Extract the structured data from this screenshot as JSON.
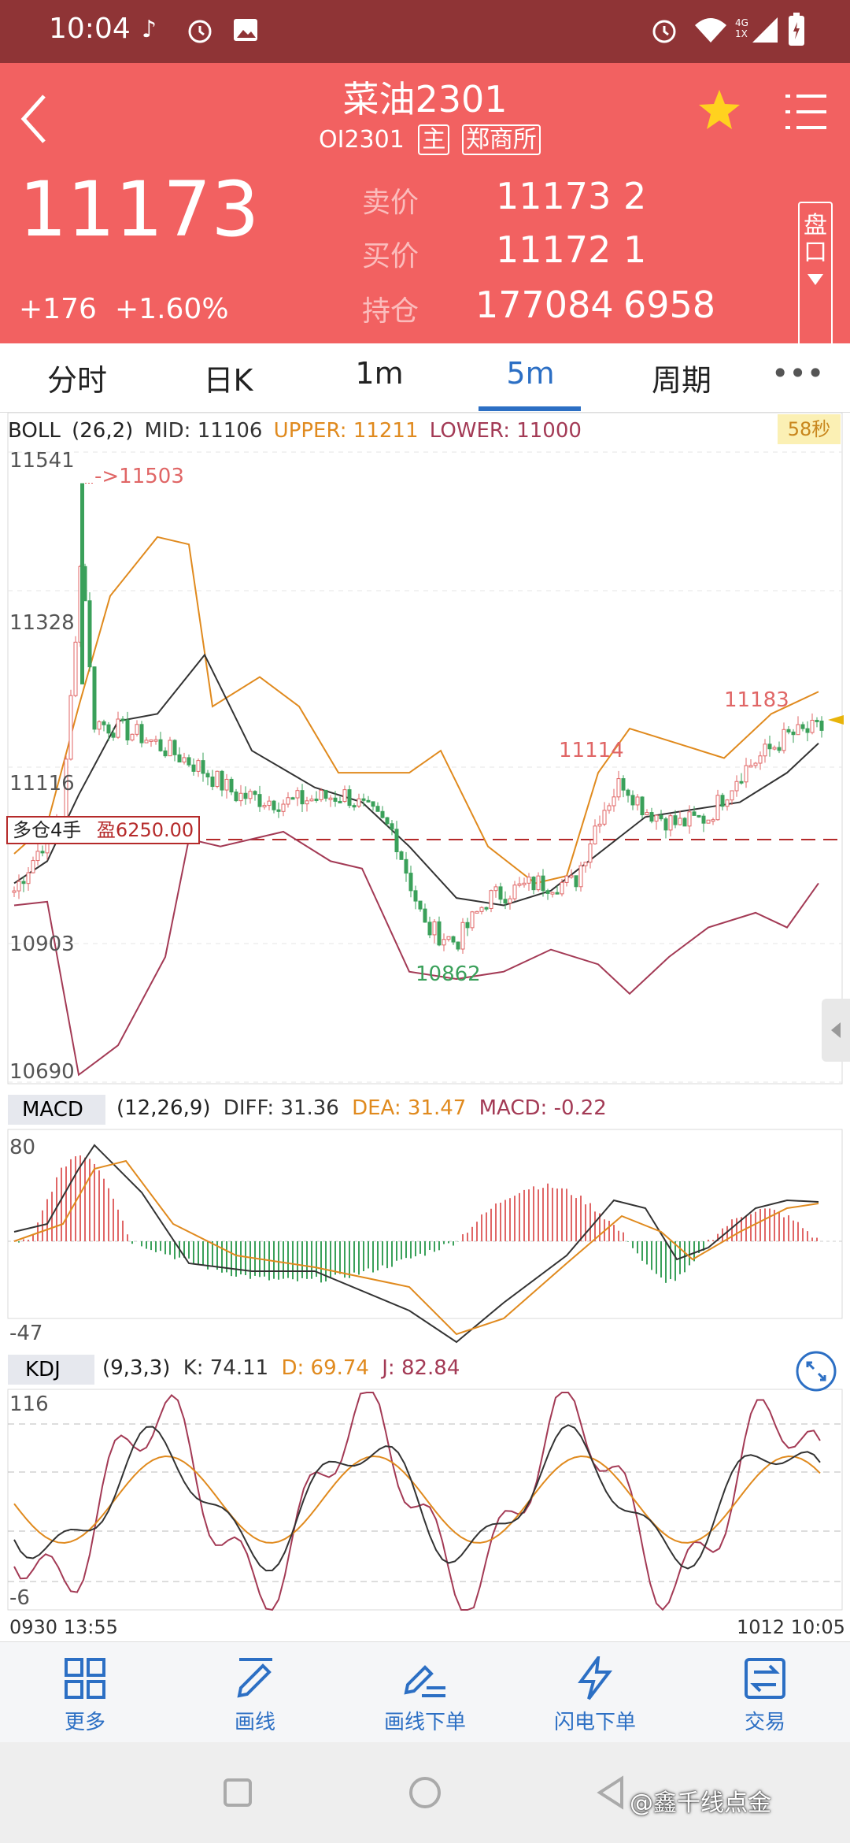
{
  "status": {
    "time": "10:04",
    "net": "4G",
    "net_sub": "1X"
  },
  "header": {
    "title": "菜油2301",
    "code": "OI2301",
    "tag_main": "主",
    "exchange": "郑商所",
    "price": "11173",
    "change": "+176",
    "change_pct": "+1.60%",
    "ask_label": "卖价",
    "ask_price": "11173",
    "ask_vol": "2",
    "bid_label": "买价",
    "bid_price": "11172",
    "bid_vol": "1",
    "oi_label": "持仓",
    "oi_value": "177084",
    "oi_change": "6958",
    "pankou": "盘口"
  },
  "tabs": [
    "分时",
    "日K",
    "1m",
    "5m",
    "周期"
  ],
  "active_tab": "5m",
  "boll": {
    "label": "BOLL",
    "params": "(26,2)",
    "mid": "MID: 11106",
    "upper": "UPPER: 11211",
    "lower": "LOWER: 11000",
    "timer": "58秒",
    "y_labels": [
      "11541",
      "11328",
      "11116",
      "10903",
      "10690"
    ],
    "max_label": "->11503",
    "anno_11114": "11114",
    "anno_11183": "11183",
    "anno_10862": "10862",
    "position_label": "多仓4手",
    "position_pnl": "盈6250.00"
  },
  "macd": {
    "label": "MACD",
    "params": "(12,26,9)",
    "diff": "DIFF: 31.36",
    "dea": "DEA: 31.47",
    "macd": "MACD: -0.22",
    "y_top": "80",
    "y_bottom": "-47"
  },
  "kdj": {
    "label": "KDJ",
    "params": "(9,3,3)",
    "k": "K: 74.11",
    "d": "D: 69.74",
    "j": "J: 82.84",
    "y_top": "116",
    "y_bottom": "-6"
  },
  "time_axis": {
    "start": "0930 13:55",
    "end": "1012 10:05"
  },
  "toolbar": [
    "更多",
    "画线",
    "画线下单",
    "闪电下单",
    "交易"
  ],
  "watermark": "@鑫千线点金",
  "colors": {
    "header_bg": "#f26161",
    "status_bg": "#8f3436",
    "up": "#e06666",
    "down": "#3aa05a",
    "upper_line": "#e08a1e",
    "mid_line": "#333333",
    "lower_line": "#a33a55",
    "accent": "#2c6fc4"
  }
}
